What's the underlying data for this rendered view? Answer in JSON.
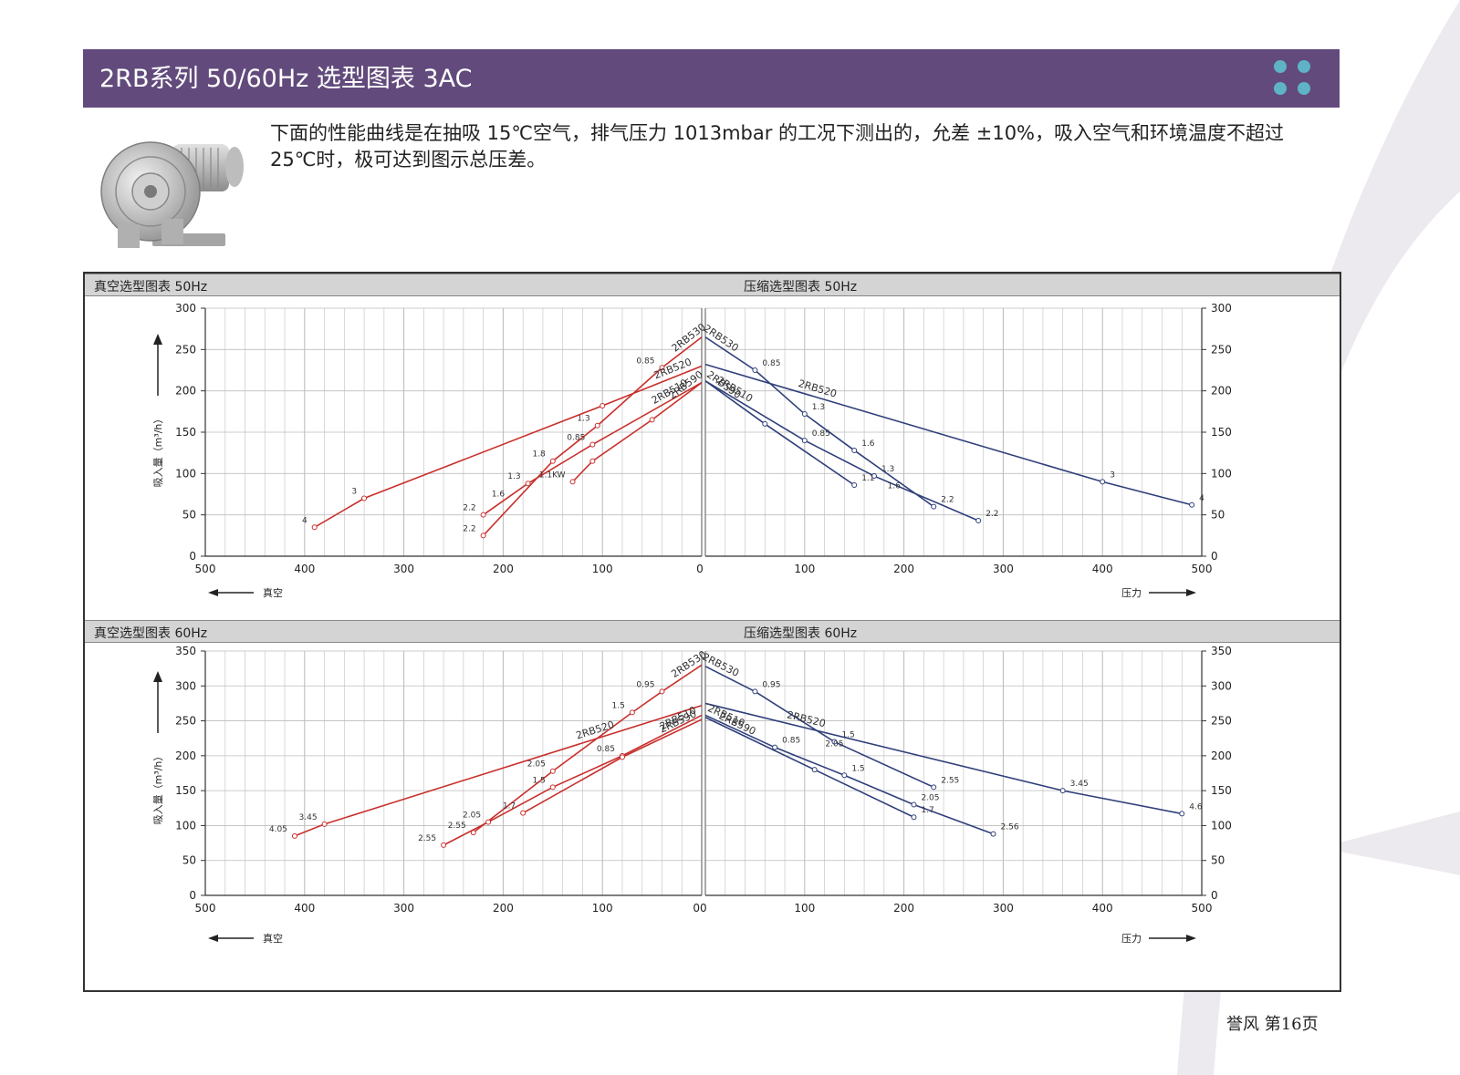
{
  "header": {
    "title": "2RB系列 50/60Hz 选型图表 3AC",
    "accent": "#624b7c",
    "dot_color": "#5fb3c6"
  },
  "intro": {
    "text": "下面的性能曲线是在抽吸 15℃空气，排气压力 1013mbar 的工况下测出的，允差 ±10%，吸入空气和环境温度不超过 25℃时，极可达到图示总压差。"
  },
  "footer": {
    "text": "誉风  第16页"
  },
  "colors": {
    "vacuum": "#c8302c",
    "pressure": "#2f3f7a",
    "grid": "#c8c8c8"
  },
  "chart_data": [
    {
      "type": "line",
      "titles": {
        "left": "真空选型图表 50Hz",
        "right": "压缩选型图表 50Hz"
      },
      "ylabel": "吸入量（m³/h）",
      "xlabel_left": "真空",
      "xlabel_right": "压力",
      "ylim": [
        0,
        300
      ],
      "yticks": [
        0,
        50,
        100,
        150,
        200,
        250,
        300
      ],
      "xlim_left": [
        500,
        0
      ],
      "xlim_right": [
        0,
        500
      ],
      "xticks": [
        0,
        100,
        200,
        300,
        400,
        500
      ],
      "xtick_labels_left": [
        "0",
        "100",
        "200",
        "300",
        "400",
        "500"
      ],
      "xtick_labels_right": [
        "0",
        "100",
        "200",
        "300",
        "400",
        "500"
      ],
      "vacuum_series": [
        {
          "name": "2RB530",
          "points": [
            [
              0,
              265
            ],
            [
              40,
              228
            ],
            [
              105,
              158
            ],
            [
              150,
              115
            ],
            [
              220,
              25
            ]
          ],
          "labels": [
            "",
            "0.85",
            "1.3",
            "1.8",
            "2.2"
          ]
        },
        {
          "name": "2RB520",
          "points": [
            [
              0,
              230
            ],
            [
              100,
              182
            ],
            [
              340,
              70
            ],
            [
              390,
              35
            ]
          ],
          "labels": [
            "",
            "",
            "3",
            "4"
          ]
        },
        {
          "name": "2RB510",
          "points": [
            [
              0,
              210
            ],
            [
              110,
              135
            ],
            [
              175,
              88
            ],
            [
              220,
              50
            ]
          ],
          "labels": [
            "",
            "0.85",
            "1.3",
            "2.2"
          ]
        },
        {
          "name": "2RB590",
          "points": [
            [
              0,
              210
            ],
            [
              50,
              165
            ],
            [
              110,
              115
            ],
            [
              130,
              90
            ]
          ],
          "labels": [
            "",
            "",
            "",
            "1.1KW"
          ]
        }
      ],
      "vacuum_extra_labels": [
        {
          "text": "1.6",
          "x": 205,
          "y": 68
        }
      ],
      "pressure_series": [
        {
          "name": "2RB530",
          "points": [
            [
              0,
              265
            ],
            [
              50,
              225
            ],
            [
              100,
              172
            ],
            [
              150,
              128
            ],
            [
              230,
              60
            ]
          ],
          "labels": [
            "",
            "0.85",
            "1.3",
            "1.6",
            "2.2"
          ]
        },
        {
          "name": "2RB520",
          "points": [
            [
              0,
              232
            ],
            [
              400,
              90
            ],
            [
              490,
              62
            ]
          ],
          "labels": [
            "",
            "3",
            "4"
          ]
        },
        {
          "name": "2RB510",
          "points": [
            [
              0,
              212
            ],
            [
              100,
              140
            ],
            [
              170,
              97
            ],
            [
              275,
              43
            ]
          ],
          "labels": [
            "",
            "0.85",
            "1.3",
            "2.2"
          ]
        },
        {
          "name": "2RB590",
          "points": [
            [
              0,
              212
            ],
            [
              60,
              160
            ],
            [
              150,
              86
            ]
          ],
          "labels": [
            "",
            "",
            "1.1"
          ]
        }
      ],
      "pressure_extra_labels": [
        {
          "text": "1.6",
          "x": 190,
          "y": 78
        }
      ]
    },
    {
      "type": "line",
      "titles": {
        "left": "真空选型图表 60Hz",
        "right": "压缩选型图表 60Hz"
      },
      "ylabel": "吸入量（m³/h）",
      "xlabel_left": "真空",
      "xlabel_right": "压力",
      "ylim": [
        0,
        350
      ],
      "yticks": [
        0,
        50,
        100,
        150,
        200,
        250,
        300,
        350
      ],
      "xlim_left": [
        500,
        0
      ],
      "xlim_right": [
        0,
        500
      ],
      "xticks": [
        0,
        100,
        200,
        300,
        400,
        500
      ],
      "xtick_labels_left": [
        "00",
        "100",
        "200",
        "300",
        "400",
        "500"
      ],
      "xtick_labels_right": [
        "00",
        "100",
        "200",
        "300",
        "400",
        "500"
      ],
      "vacuum_series": [
        {
          "name": "2RB530",
          "points": [
            [
              0,
              330
            ],
            [
              40,
              292
            ],
            [
              70,
              262
            ],
            [
              150,
              178
            ],
            [
              230,
              90
            ]
          ],
          "labels": [
            "",
            "0.95",
            "1.5",
            "2.05",
            "2.55"
          ]
        },
        {
          "name": "2RB520",
          "points": [
            [
              0,
              272
            ],
            [
              380,
              102
            ],
            [
              410,
              85
            ]
          ],
          "labels": [
            "",
            "3.45",
            "4.05"
          ]
        },
        {
          "name": "2RB510",
          "points": [
            [
              0,
              258
            ],
            [
              80,
              200
            ],
            [
              150,
              155
            ],
            [
              215,
              105
            ],
            [
              260,
              72
            ]
          ],
          "labels": [
            "",
            "0.85",
            "1.5",
            "2.05",
            "2.55"
          ]
        },
        {
          "name": "2RB590",
          "points": [
            [
              0,
              252
            ],
            [
              80,
              198
            ],
            [
              180,
              118
            ]
          ],
          "labels": [
            "",
            "",
            "1.7"
          ]
        }
      ],
      "vacuum_extra_labels": [],
      "pressure_series": [
        {
          "name": "2RB530",
          "points": [
            [
              0,
              328
            ],
            [
              50,
              292
            ],
            [
              130,
              220
            ],
            [
              230,
              155
            ]
          ],
          "labels": [
            "",
            "0.95",
            "1.5",
            "2.55"
          ]
        },
        {
          "name": "2RB520",
          "points": [
            [
              0,
              275
            ],
            [
              360,
              150
            ],
            [
              480,
              117
            ]
          ],
          "labels": [
            "",
            "3.45",
            "4.6"
          ]
        },
        {
          "name": "2RB510",
          "points": [
            [
              0,
              258
            ],
            [
              70,
              212
            ],
            [
              140,
              172
            ],
            [
              210,
              130
            ],
            [
              290,
              88
            ]
          ],
          "labels": [
            "",
            "0.85",
            "1.5",
            "2.05",
            "2.56"
          ]
        },
        {
          "name": "2RB590",
          "points": [
            [
              0,
              255
            ],
            [
              110,
              180
            ],
            [
              210,
              112
            ]
          ],
          "labels": [
            "",
            "",
            "1.7"
          ]
        }
      ],
      "pressure_extra_labels": [
        {
          "text": "2.05",
          "x": 130,
          "y": 208
        }
      ]
    }
  ]
}
